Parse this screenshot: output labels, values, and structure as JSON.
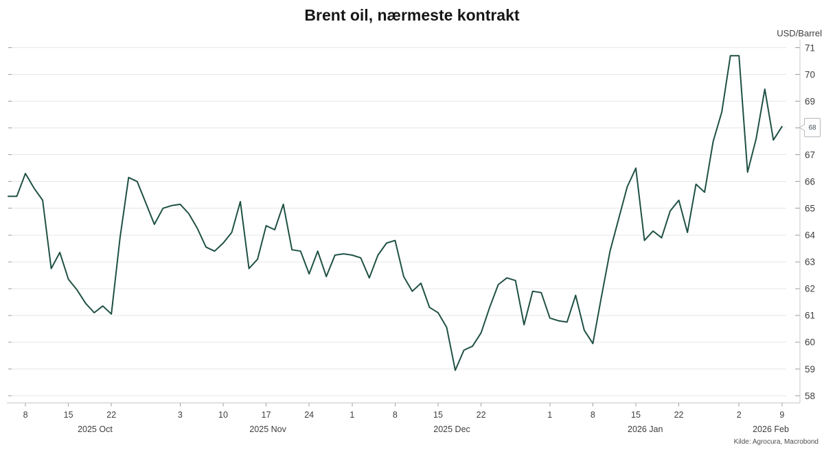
{
  "chart_data": {
    "type": "line",
    "title": "Brent oil, nærmeste kontrakt",
    "ylabel": "USD/Barrel",
    "xlabel": "",
    "ylim": [
      58,
      71
    ],
    "y_ticks": [
      71,
      70,
      69,
      68,
      67,
      66,
      65,
      64,
      63,
      62,
      61,
      60,
      59,
      58
    ],
    "grid": "horizontal",
    "legend": "none",
    "last_value_marker": "68",
    "source": "Kilde: Agrocura, Macrobond",
    "colors": {
      "line": "#1e5044",
      "grid": "#e6e6e6",
      "axis": "#c7c7c7",
      "tick": "#9b9b9b",
      "label": "#3d3d3d"
    },
    "x_ticks": [
      {
        "label": "8",
        "index": 2
      },
      {
        "label": "15",
        "index": 7
      },
      {
        "label": "22",
        "index": 12
      },
      {
        "label": "3",
        "index": 20
      },
      {
        "label": "10",
        "index": 25
      },
      {
        "label": "17",
        "index": 30
      },
      {
        "label": "24",
        "index": 35
      },
      {
        "label": "1",
        "index": 40
      },
      {
        "label": "8",
        "index": 45
      },
      {
        "label": "15",
        "index": 50
      },
      {
        "label": "22",
        "index": 55
      },
      {
        "label": "1",
        "index": 63
      },
      {
        "label": "8",
        "index": 68
      },
      {
        "label": "15",
        "index": 73
      },
      {
        "label": "22",
        "index": 78
      },
      {
        "label": "2",
        "index": 85
      },
      {
        "label": "9",
        "index": 90
      }
    ],
    "month_labels": [
      {
        "label": "2025 Oct",
        "index": 10.1
      },
      {
        "label": "2025 Nov",
        "index": 30.2
      },
      {
        "label": "2025 Dec",
        "index": 51.6
      },
      {
        "label": "2026 Jan",
        "index": 74.1
      },
      {
        "label": "2026 Feb",
        "index": 88.7
      }
    ],
    "series": [
      {
        "name": "Brent oil, nærmeste kontrakt",
        "values": [
          65.45,
          65.45,
          66.3,
          65.75,
          65.3,
          62.75,
          63.35,
          62.35,
          61.95,
          61.45,
          61.1,
          61.35,
          61.05,
          63.9,
          66.15,
          66.0,
          65.2,
          64.4,
          65.0,
          65.1,
          65.15,
          64.8,
          64.25,
          63.55,
          63.4,
          63.7,
          64.1,
          65.25,
          62.75,
          63.1,
          64.35,
          64.2,
          65.15,
          63.45,
          63.4,
          62.55,
          63.4,
          62.45,
          63.25,
          63.3,
          63.25,
          63.15,
          62.4,
          63.25,
          63.7,
          63.8,
          62.45,
          61.9,
          62.2,
          61.3,
          61.1,
          60.55,
          58.95,
          59.7,
          59.85,
          60.35,
          61.3,
          62.15,
          62.4,
          62.3,
          60.65,
          61.9,
          61.85,
          60.9,
          60.8,
          60.75,
          61.75,
          60.45,
          59.95,
          61.7,
          63.4,
          64.6,
          65.8,
          66.5,
          63.8,
          64.15,
          63.9,
          64.9,
          65.3,
          64.1,
          65.9,
          65.6,
          67.5,
          68.6,
          70.7,
          70.7,
          66.35,
          67.6,
          69.45,
          67.55,
          68.05
        ]
      }
    ]
  }
}
